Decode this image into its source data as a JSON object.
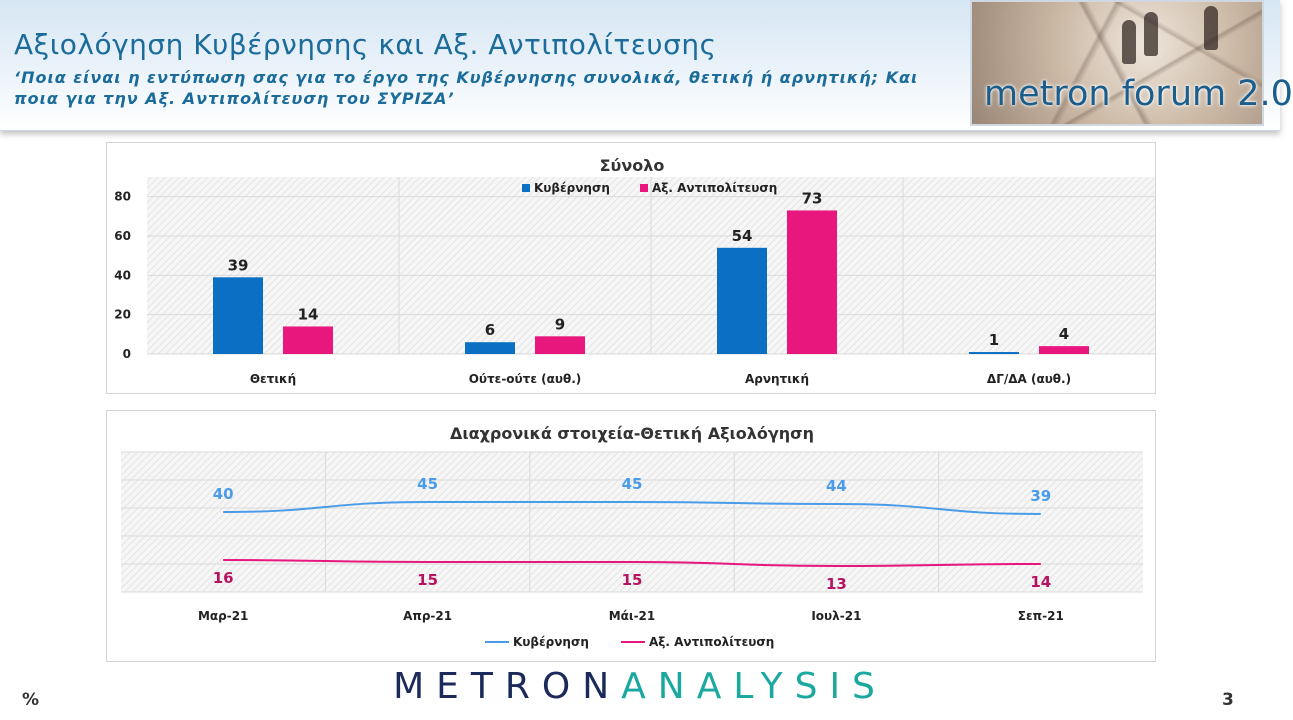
{
  "header": {
    "title": "Αξιολόγηση Κυβέρνησης και Αξ. Αντιπολίτευσης",
    "subtitle": "‘Ποια είναι η εντύπωση σας για το έργο της Κυβέρνησης συνολικά, θετική ή αρνητική; Και ποια για την Αξ. Αντιπολίτευση του ΣΥΡΙΖΑ’",
    "logo_text": "metron forum 2.0"
  },
  "colors": {
    "kyvernisi_bar": "#0b6fc4",
    "antipolitefsi": "#e8177d",
    "kyvernisi_line": "#4a9be8",
    "brand_dark": "#1b2a5a",
    "brand_teal": "#1aa8a0",
    "title_blue": "#1b6c9a"
  },
  "chart_data": [
    {
      "type": "bar",
      "title": "Σύνολο",
      "categories": [
        "Θετική",
        "Ούτε-ούτε (αυθ.)",
        "Αρνητική",
        "ΔΓ/ΔΑ (αυθ.)"
      ],
      "series": [
        {
          "name": "Κυβέρνηση",
          "values": [
            39,
            6,
            54,
            1
          ]
        },
        {
          "name": "Αξ. Αντιπολίτευση",
          "values": [
            14,
            9,
            73,
            4
          ]
        }
      ],
      "yticks": [
        "0",
        "20",
        "40",
        "60",
        "80"
      ],
      "ylim": [
        0,
        90
      ],
      "legend_position": "top",
      "grid": true
    },
    {
      "type": "line",
      "title": "Διαχρονικά στοιχεία-Θετική Αξιολόγηση",
      "x": [
        "Μαρ-21",
        "Απρ-21",
        "Μάι-21",
        "Ιουλ-21",
        "Σεπ-21"
      ],
      "series": [
        {
          "name": "Κυβέρνηση",
          "values": [
            40,
            45,
            45,
            44,
            39
          ]
        },
        {
          "name": "Αξ. Αντιπολίτευση",
          "values": [
            16,
            15,
            15,
            13,
            14
          ]
        }
      ],
      "ylim": [
        0,
        70
      ],
      "legend_position": "bottom",
      "grid": true
    }
  ],
  "footer": {
    "brand_first": "METRON",
    "brand_second": "ANALYSIS",
    "percent_sign": "%",
    "page_number": "3"
  }
}
